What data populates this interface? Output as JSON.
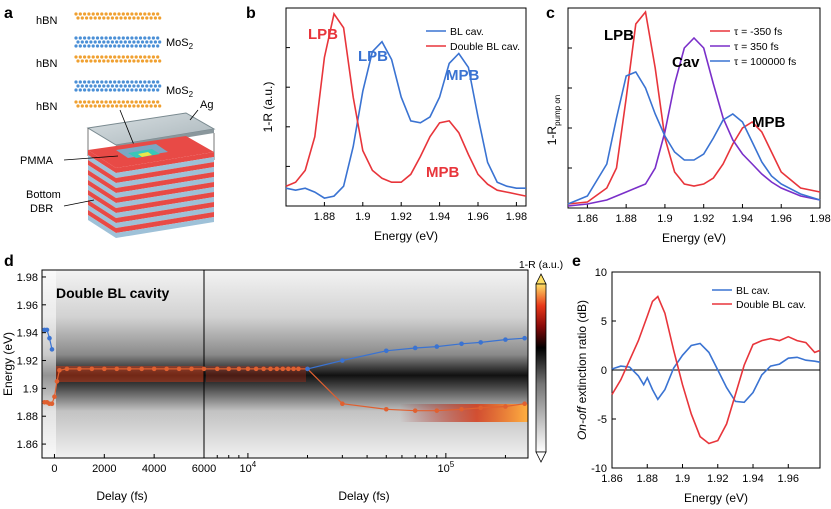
{
  "panel_letters": [
    "a",
    "b",
    "c",
    "d",
    "e"
  ],
  "schematic": {
    "layers": [
      "hBN",
      "MoS2",
      "hBN",
      "MoS2",
      "hBN"
    ],
    "layer_labels": [
      "hBN",
      "MoS",
      "hBN",
      "MoS",
      "hBN"
    ],
    "sub2": "2",
    "ag": "Ag",
    "pmma": "PMMA",
    "bottom": "Bottom",
    "dbr": "DBR"
  },
  "colors": {
    "blue": "#3a73d2",
    "red": "#e8353b",
    "purple": "#7a2fc9",
    "orange": "#e06030"
  },
  "chart_data": [
    {
      "panel": "b",
      "type": "line",
      "xlabel": "Energy (eV)",
      "ylabel": "1-R (a.u.)",
      "xlim": [
        1.86,
        1.985
      ],
      "ylim": [
        0,
        1
      ],
      "xticks": [
        1.88,
        1.9,
        1.92,
        1.94,
        1.96,
        1.98
      ],
      "xtick_labels": [
        "1.88",
        "1.9",
        "1.92",
        "1.94",
        "1.96",
        "1.98"
      ],
      "legend": "top-right",
      "series": [
        {
          "name": "BL cav.",
          "color": "#3a73d2",
          "x": [
            1.86,
            1.865,
            1.87,
            1.875,
            1.88,
            1.885,
            1.89,
            1.895,
            1.9,
            1.905,
            1.91,
            1.915,
            1.92,
            1.925,
            1.93,
            1.935,
            1.94,
            1.945,
            1.95,
            1.955,
            1.96,
            1.965,
            1.97,
            1.975,
            1.98,
            1.985
          ],
          "y": [
            0.09,
            0.08,
            0.09,
            0.07,
            0.04,
            0.05,
            0.1,
            0.3,
            0.58,
            0.78,
            0.83,
            0.74,
            0.55,
            0.43,
            0.42,
            0.45,
            0.55,
            0.72,
            0.77,
            0.7,
            0.45,
            0.22,
            0.12,
            0.1,
            0.09,
            0.09
          ]
        },
        {
          "name": "Double BL cav.",
          "color": "#e8353b",
          "x": [
            1.86,
            1.865,
            1.87,
            1.875,
            1.88,
            1.885,
            1.89,
            1.895,
            1.9,
            1.905,
            1.91,
            1.915,
            1.92,
            1.925,
            1.93,
            1.935,
            1.94,
            1.945,
            1.95,
            1.955,
            1.96,
            1.965,
            1.97,
            1.975,
            1.98,
            1.985
          ],
          "y": [
            0.1,
            0.12,
            0.18,
            0.35,
            0.75,
            0.97,
            0.9,
            0.55,
            0.28,
            0.18,
            0.14,
            0.12,
            0.12,
            0.16,
            0.25,
            0.35,
            0.42,
            0.43,
            0.37,
            0.26,
            0.16,
            0.11,
            0.08,
            0.07,
            0.06,
            0.05
          ]
        }
      ],
      "annotations": [
        {
          "text": "LPB",
          "color": "#e8353b"
        },
        {
          "text": "LPB",
          "color": "#3a73d2"
        },
        {
          "text": "MPB",
          "color": "#3a73d2"
        },
        {
          "text": "MPB",
          "color": "#e8353b"
        }
      ]
    },
    {
      "panel": "c",
      "type": "line",
      "xlabel": "Energy (eV)",
      "ylabel": "1-R",
      "ylabel_sub": "pump on",
      "xlim": [
        1.85,
        1.98
      ],
      "ylim": [
        0,
        1
      ],
      "xticks": [
        1.86,
        1.88,
        1.9,
        1.92,
        1.94,
        1.96,
        1.98
      ],
      "xtick_labels": [
        "1.86",
        "1.88",
        "1.9",
        "1.92",
        "1.94",
        "1.96",
        "1.98"
      ],
      "legend": "top-right",
      "series": [
        {
          "name": "τ = -350 fs",
          "color": "#e8353b",
          "x": [
            1.85,
            1.86,
            1.87,
            1.875,
            1.88,
            1.885,
            1.89,
            1.895,
            1.9,
            1.905,
            1.91,
            1.915,
            1.92,
            1.925,
            1.93,
            1.935,
            1.94,
            1.945,
            1.95,
            1.955,
            1.96,
            1.97,
            1.98
          ],
          "y": [
            0.02,
            0.03,
            0.1,
            0.2,
            0.55,
            0.92,
            0.98,
            0.7,
            0.35,
            0.18,
            0.12,
            0.11,
            0.12,
            0.15,
            0.22,
            0.32,
            0.4,
            0.43,
            0.38,
            0.28,
            0.18,
            0.1,
            0.08
          ]
        },
        {
          "name": "τ = 350 fs",
          "color": "#7a2fc9",
          "x": [
            1.85,
            1.86,
            1.87,
            1.875,
            1.88,
            1.885,
            1.89,
            1.895,
            1.9,
            1.905,
            1.91,
            1.915,
            1.92,
            1.925,
            1.93,
            1.935,
            1.94,
            1.945,
            1.95,
            1.955,
            1.96,
            1.97,
            1.98
          ],
          "y": [
            0.01,
            0.02,
            0.04,
            0.06,
            0.08,
            0.1,
            0.12,
            0.2,
            0.38,
            0.62,
            0.8,
            0.85,
            0.8,
            0.62,
            0.45,
            0.34,
            0.27,
            0.22,
            0.17,
            0.13,
            0.1,
            0.06,
            0.04
          ]
        },
        {
          "name": "τ = 100000 fs",
          "color": "#3a73d2",
          "x": [
            1.85,
            1.86,
            1.87,
            1.875,
            1.88,
            1.885,
            1.89,
            1.895,
            1.9,
            1.905,
            1.91,
            1.915,
            1.92,
            1.925,
            1.93,
            1.935,
            1.94,
            1.945,
            1.95,
            1.955,
            1.96,
            1.97,
            1.98
          ],
          "y": [
            0.02,
            0.06,
            0.22,
            0.45,
            0.66,
            0.68,
            0.6,
            0.47,
            0.36,
            0.28,
            0.24,
            0.24,
            0.27,
            0.35,
            0.44,
            0.47,
            0.43,
            0.33,
            0.23,
            0.16,
            0.12,
            0.07,
            0.04
          ]
        }
      ],
      "annotations": [
        {
          "text": "LPB"
        },
        {
          "text": "Cav"
        },
        {
          "text": "MPB"
        }
      ]
    },
    {
      "panel": "d",
      "type": "heatmap",
      "title": "Double BL cavity",
      "xlabel": "Delay (fs)",
      "ylabel": "Energy (eV)",
      "ylim": [
        1.85,
        1.985
      ],
      "yticks": [
        1.86,
        1.88,
        1.9,
        1.92,
        1.94,
        1.96,
        1.98
      ],
      "ytick_labels": [
        "1.86",
        "1.88",
        "1.9",
        "1.92",
        "1.94",
        "1.96",
        "1.98"
      ],
      "linear_xlim": [
        -500,
        6000
      ],
      "linear_xticks": [
        0,
        2000,
        4000,
        6000
      ],
      "linear_xtick_labels": [
        "0",
        "2000",
        "4000",
        "6000"
      ],
      "log_xlim": [
        6000,
        260000
      ],
      "log_xtick_labels": [
        {
          "base": "10",
          "exp": "4"
        },
        {
          "base": "10",
          "exp": "5"
        }
      ],
      "colorbar_label": "1-R (a.u.)",
      "series": [
        {
          "name": "upper branch",
          "color": "#3a73d2",
          "x": [
            -400,
            -300,
            -200,
            -100
          ],
          "y": [
            1.942,
            1.942,
            1.936,
            1.928
          ]
        },
        {
          "name": "lower branch",
          "color": "#e06030",
          "x": [
            -400,
            -300,
            -200,
            -100,
            0,
            100,
            200,
            500,
            1000,
            1500,
            2000,
            2500,
            3000,
            3500,
            4000,
            4500,
            5000,
            5500,
            6000,
            7000,
            8000,
            9000,
            10000,
            11000,
            12000,
            13000,
            14000,
            15000,
            16000,
            17000,
            18000,
            20000,
            30000,
            50000,
            70000,
            90000,
            120000,
            150000,
            200000,
            250000
          ],
          "y": [
            1.89,
            1.89,
            1.889,
            1.889,
            1.894,
            1.905,
            1.913,
            1.914,
            1.914,
            1.914,
            1.914,
            1.914,
            1.914,
            1.914,
            1.914,
            1.914,
            1.914,
            1.914,
            1.914,
            1.914,
            1.914,
            1.914,
            1.914,
            1.914,
            1.914,
            1.914,
            1.914,
            1.914,
            1.914,
            1.914,
            1.914,
            1.914,
            1.889,
            1.885,
            1.884,
            1.884,
            1.885,
            1.886,
            1.887,
            1.889
          ]
        },
        {
          "name": "upper split",
          "color": "#3a73d2",
          "x": [
            20000,
            30000,
            50000,
            70000,
            90000,
            120000,
            150000,
            200000,
            250000
          ],
          "y": [
            1.914,
            1.92,
            1.927,
            1.929,
            1.93,
            1.932,
            1.933,
            1.935,
            1.936
          ]
        }
      ]
    },
    {
      "panel": "e",
      "type": "line",
      "xlabel": "Energy (eV)",
      "ylabel_italic": "On-off",
      "ylabel": " extinction ratio (dB)",
      "xlim": [
        1.86,
        1.978
      ],
      "ylim": [
        -10,
        10
      ],
      "xticks": [
        1.86,
        1.88,
        1.9,
        1.92,
        1.94,
        1.96
      ],
      "xtick_labels": [
        "1.86",
        "1.88",
        "1.9",
        "1.92",
        "1.94",
        "1.96"
      ],
      "yticks": [
        -10,
        -5,
        0,
        5,
        10
      ],
      "ytick_labels": [
        "-10",
        "-5",
        "0",
        "5",
        "10"
      ],
      "legend": "top-right",
      "series": [
        {
          "name": "BL cav.",
          "color": "#3a73d2",
          "x": [
            1.86,
            1.865,
            1.87,
            1.875,
            1.878,
            1.88,
            1.883,
            1.886,
            1.89,
            1.895,
            1.9,
            1.905,
            1.91,
            1.915,
            1.92,
            1.925,
            1.93,
            1.935,
            1.94,
            1.945,
            1.95,
            1.955,
            1.96,
            1.965,
            1.97,
            1.975,
            1.978
          ],
          "y": [
            0.1,
            0.4,
            0.3,
            -0.6,
            -1.5,
            -0.8,
            -2.0,
            -3.0,
            -2.0,
            0.2,
            1.5,
            2.5,
            2.7,
            1.8,
            0.0,
            -1.8,
            -3.2,
            -3.3,
            -2.3,
            -0.5,
            0.4,
            0.6,
            1.2,
            1.3,
            1.0,
            0.9,
            0.8
          ]
        },
        {
          "name": "Double BL cav.",
          "color": "#e8353b",
          "x": [
            1.86,
            1.865,
            1.87,
            1.875,
            1.88,
            1.883,
            1.886,
            1.89,
            1.895,
            1.9,
            1.905,
            1.91,
            1.915,
            1.92,
            1.925,
            1.93,
            1.935,
            1.94,
            1.945,
            1.95,
            1.955,
            1.96,
            1.965,
            1.97,
            1.975,
            1.978
          ],
          "y": [
            -2.5,
            -1.0,
            1.0,
            3.0,
            5.5,
            7.0,
            7.5,
            5.8,
            2.0,
            -1.5,
            -4.5,
            -6.8,
            -7.5,
            -7.2,
            -5.5,
            -2.5,
            0.5,
            2.6,
            3.0,
            3.2,
            3.0,
            3.4,
            3.0,
            2.8,
            1.8,
            2.0
          ]
        }
      ]
    }
  ]
}
